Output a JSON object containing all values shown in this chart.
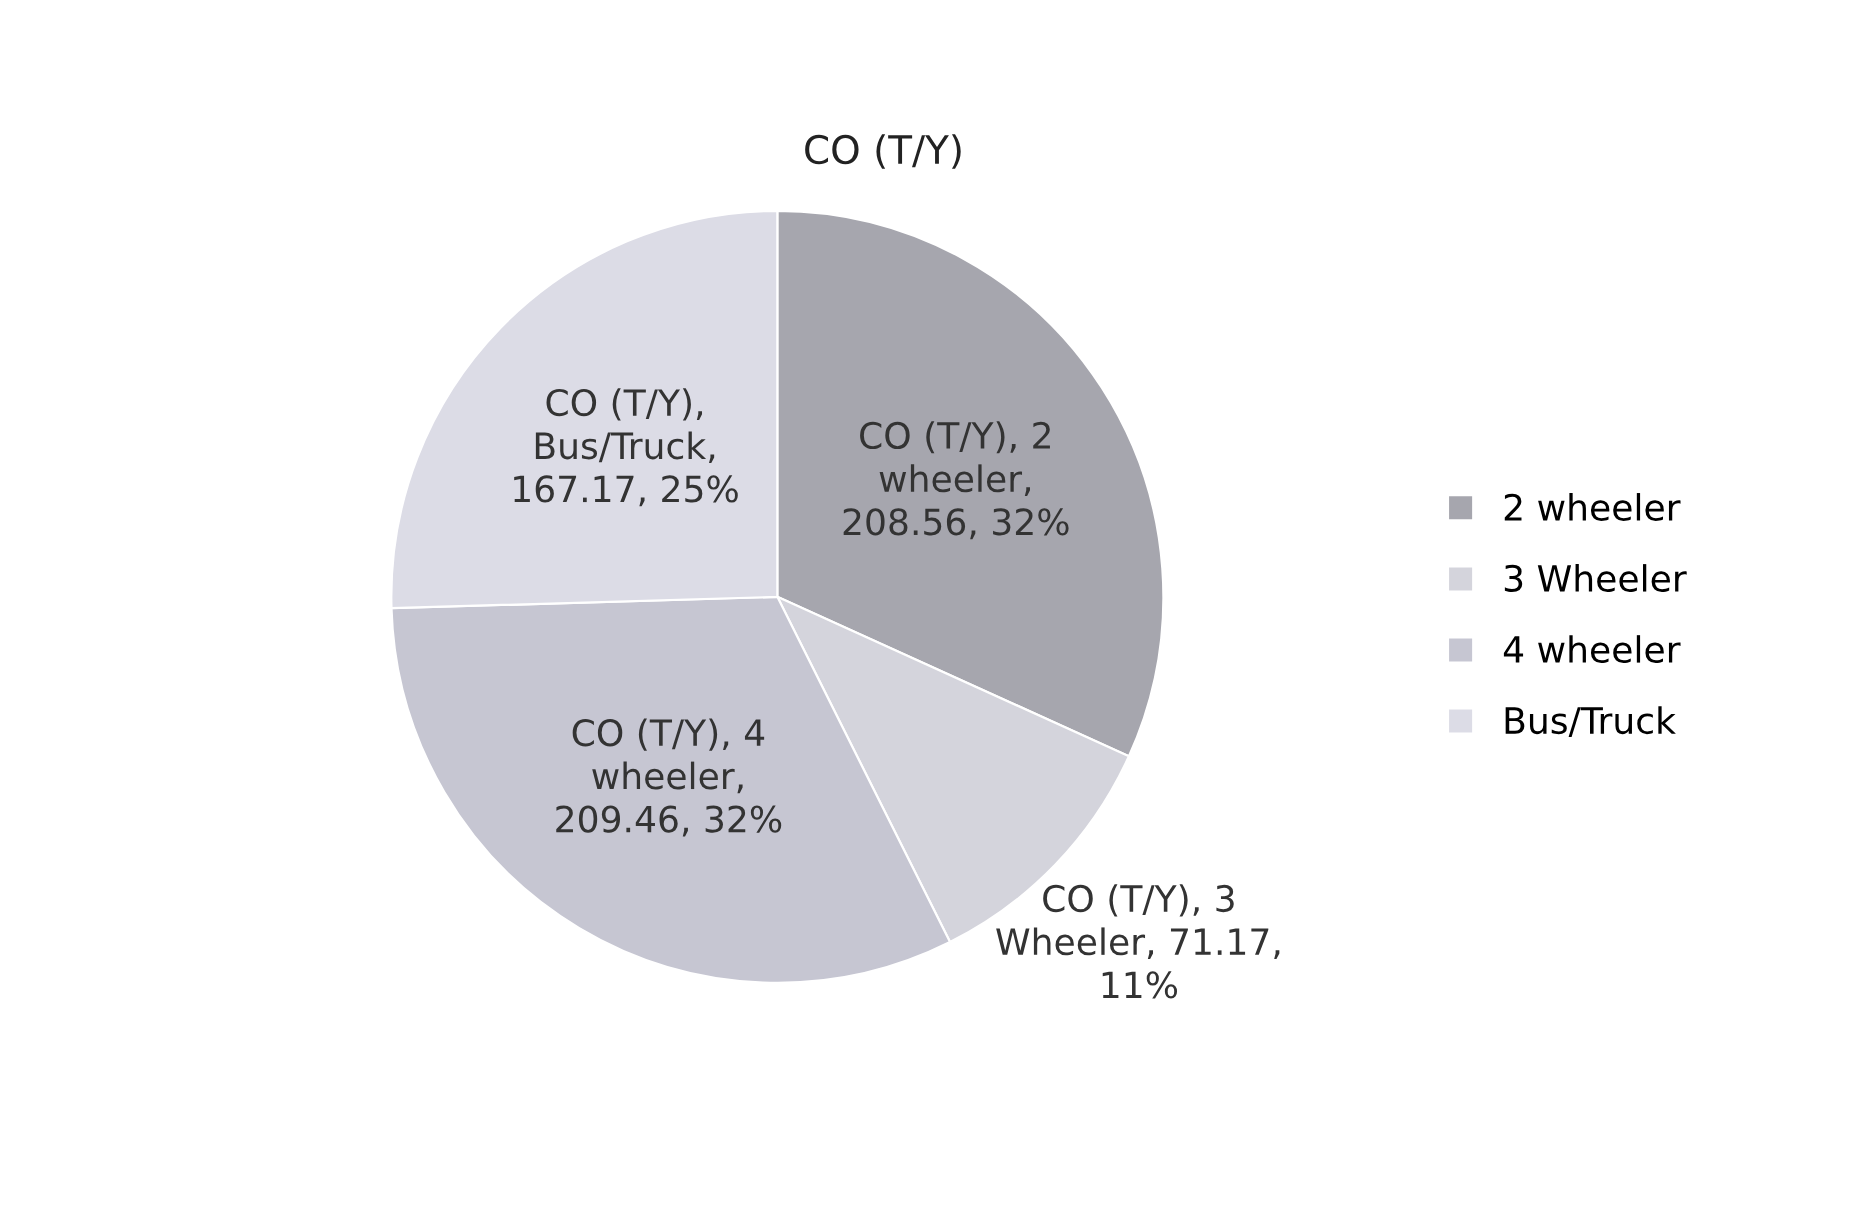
{
  "chart_data": {
    "type": "pie",
    "title": "CO (T/Y)",
    "categories": [
      "2 wheeler",
      "3 Wheeler",
      "4 wheeler",
      "Bus/Truck"
    ],
    "values": [
      208.56,
      71.17,
      209.46,
      167.17
    ],
    "colors": [
      "#a6a6ae",
      "#d4d4dc",
      "#c6c6d2",
      "#dcdce6"
    ],
    "value_labels": [
      "CO (T/Y), 2\nwheeler,\n208.56, 32%",
      "CO (T/Y), 3\nWheeler, 71.17,\n11%",
      "CO (T/Y), 4\nwheeler,\n209.46, 32%",
      "CO (T/Y),\nBus/Truck,\n167.17, 25%"
    ],
    "legend": "right"
  }
}
